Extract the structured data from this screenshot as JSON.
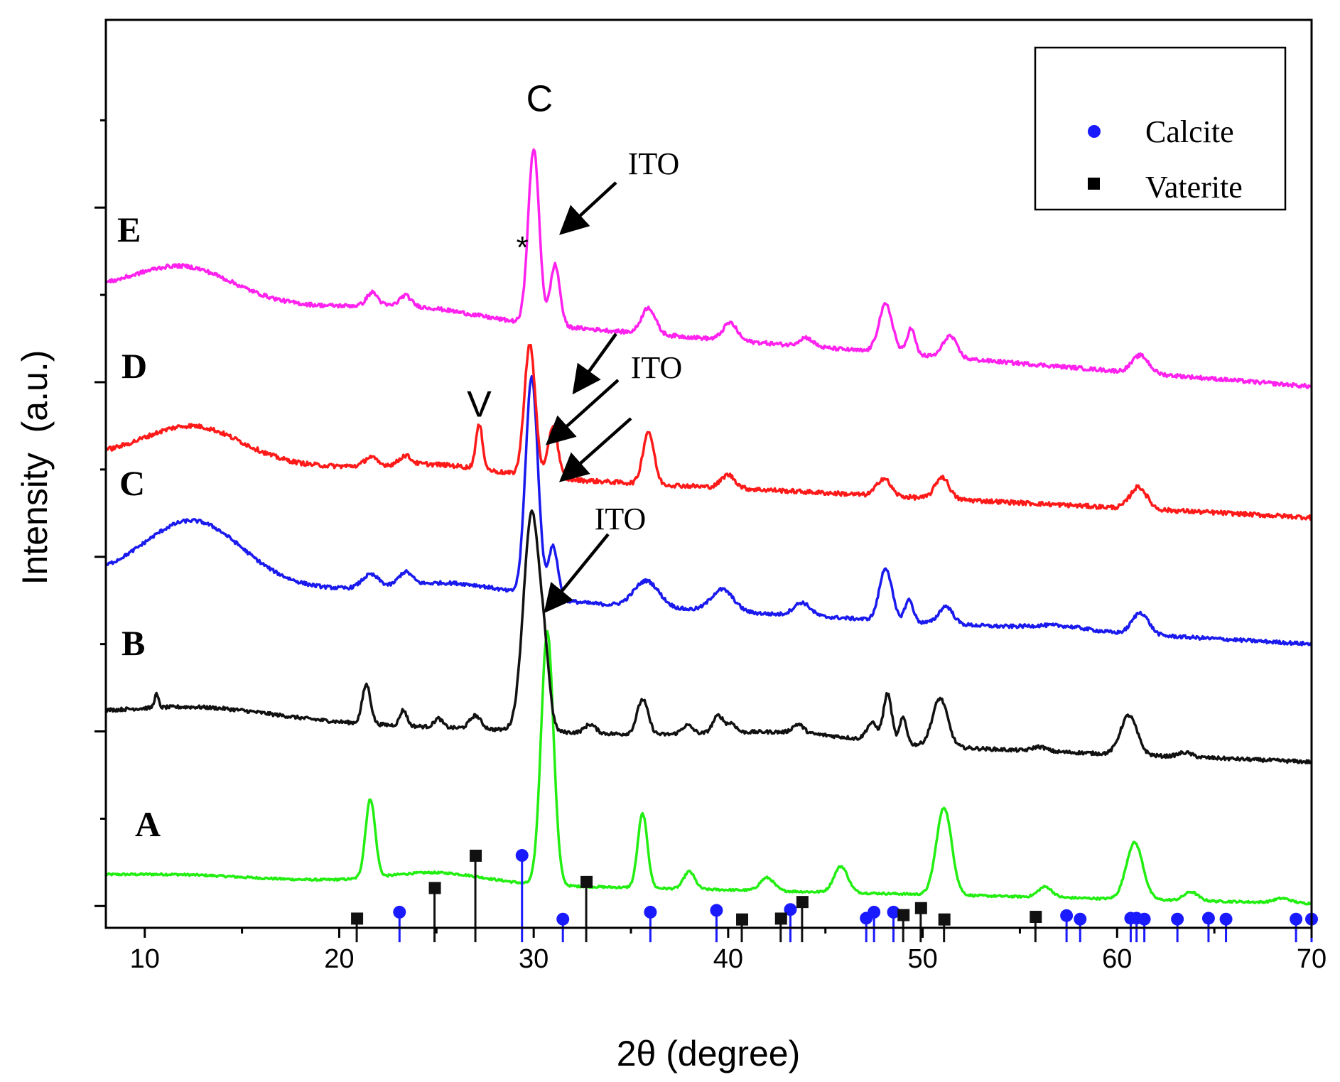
{
  "chart_data": {
    "type": "line",
    "title": "",
    "xlabel": "2θ (degree)",
    "ylabel": "Intensity  (a.u.)",
    "xlim": [
      8,
      70
    ],
    "ylim": [
      0,
      10.4
    ],
    "grid": false,
    "x_ticks": [
      10,
      20,
      30,
      40,
      50,
      60,
      70
    ],
    "y_tick_count": 10,
    "legend": {
      "position": "top-right",
      "items": [
        {
          "label": "Calcite",
          "marker": "circle",
          "color": "#1a1aff"
        },
        {
          "label": "Vaterite",
          "marker": "square",
          "color": "#000000"
        }
      ]
    },
    "series": [
      {
        "name": "A",
        "color": "#22ee11",
        "baseline": 0.6,
        "noise": 0.012,
        "end": 0.28,
        "peaks": [
          [
            21.6,
            0.9,
            0.35
          ],
          [
            30.7,
            2.9,
            0.45
          ],
          [
            35.6,
            0.85,
            0.35
          ],
          [
            38.0,
            0.2,
            0.4
          ],
          [
            42.0,
            0.15,
            0.5
          ],
          [
            45.8,
            0.3,
            0.5
          ],
          [
            51.1,
            1.0,
            0.55
          ],
          [
            56.3,
            0.12,
            0.5
          ],
          [
            60.9,
            0.65,
            0.6
          ],
          [
            63.8,
            0.1,
            0.5
          ],
          [
            68.5,
            0.05,
            0.6
          ]
        ],
        "bumps": [
          [
            25,
            0.12,
            3.5
          ],
          [
            12,
            0.03,
            4
          ]
        ]
      },
      {
        "name": "B",
        "color": "#111111",
        "baseline": 2.45,
        "noise": 0.02,
        "end": 1.9,
        "peaks": [
          [
            10.6,
            0.15,
            0.15
          ],
          [
            21.4,
            0.45,
            0.3
          ],
          [
            23.3,
            0.18,
            0.25
          ],
          [
            25.1,
            0.1,
            0.3
          ],
          [
            27.0,
            0.15,
            0.4
          ],
          [
            29.9,
            2.5,
            0.6
          ],
          [
            30.6,
            0.5,
            0.35
          ],
          [
            32.9,
            0.1,
            0.4
          ],
          [
            35.6,
            0.4,
            0.4
          ],
          [
            37.9,
            0.1,
            0.4
          ],
          [
            39.5,
            0.2,
            0.4
          ],
          [
            40.2,
            0.1,
            0.3
          ],
          [
            43.6,
            0.1,
            0.4
          ],
          [
            47.4,
            0.2,
            0.4
          ],
          [
            48.2,
            0.55,
            0.3
          ],
          [
            49.0,
            0.3,
            0.25
          ],
          [
            50.9,
            0.55,
            0.55
          ],
          [
            56.0,
            0.05,
            0.5
          ],
          [
            60.6,
            0.45,
            0.6
          ],
          [
            63.5,
            0.05,
            0.5
          ]
        ],
        "bumps": [
          [
            13,
            0.12,
            5
          ],
          [
            43,
            0.1,
            5
          ]
        ]
      },
      {
        "name": "C",
        "color": "#1a1aee",
        "baseline": 4.02,
        "noise": 0.02,
        "end": 3.25,
        "peaks": [
          [
            12.5,
            0.7,
            3.5
          ],
          [
            21.6,
            0.15,
            0.6
          ],
          [
            23.4,
            0.15,
            0.5
          ],
          [
            29.9,
            2.5,
            0.45
          ],
          [
            31.0,
            0.6,
            0.35
          ],
          [
            35.8,
            0.3,
            0.9
          ],
          [
            39.7,
            0.25,
            0.8
          ],
          [
            43.8,
            0.15,
            0.6
          ],
          [
            48.1,
            0.6,
            0.45
          ],
          [
            49.3,
            0.25,
            0.3
          ],
          [
            51.2,
            0.2,
            0.5
          ],
          [
            57,
            0.05,
            2
          ],
          [
            61.2,
            0.25,
            0.6
          ]
        ],
        "bumps": [
          [
            26,
            0.15,
            4
          ]
        ]
      },
      {
        "name": "D",
        "color": "#ff1a1a",
        "baseline": 5.4,
        "noise": 0.025,
        "end": 4.7,
        "peaks": [
          [
            12.5,
            0.4,
            3.5
          ],
          [
            21.6,
            0.1,
            0.4
          ],
          [
            23.4,
            0.1,
            0.4
          ],
          [
            27.2,
            0.5,
            0.25
          ],
          [
            29.8,
            1.5,
            0.4
          ],
          [
            31.0,
            0.6,
            0.35
          ],
          [
            35.9,
            0.6,
            0.4
          ],
          [
            40.0,
            0.15,
            0.5
          ],
          [
            48.0,
            0.2,
            0.5
          ],
          [
            51.0,
            0.25,
            0.5
          ],
          [
            61.1,
            0.25,
            0.6
          ]
        ],
        "bumps": [
          [
            25,
            0.1,
            4
          ]
        ]
      },
      {
        "name": "E",
        "color": "#ff22ee",
        "baseline": 7.3,
        "noise": 0.022,
        "end": 6.2,
        "peaks": [
          [
            12.0,
            0.35,
            3.5
          ],
          [
            21.7,
            0.15,
            0.4
          ],
          [
            23.4,
            0.12,
            0.4
          ],
          [
            30.0,
            2.0,
            0.4
          ],
          [
            31.1,
            0.7,
            0.35
          ],
          [
            35.9,
            0.3,
            0.5
          ],
          [
            40.1,
            0.2,
            0.5
          ],
          [
            44.0,
            0.1,
            0.5
          ],
          [
            48.1,
            0.55,
            0.5
          ],
          [
            49.4,
            0.3,
            0.3
          ],
          [
            51.4,
            0.25,
            0.5
          ],
          [
            61.2,
            0.2,
            0.6
          ]
        ],
        "bumps": [
          [
            24,
            0.1,
            4
          ]
        ]
      }
    ],
    "reference_lines": {
      "calcite": {
        "color": "#1a1aff",
        "x": [
          23.1,
          29.4,
          31.5,
          36.0,
          39.4,
          43.2,
          47.1,
          47.5,
          48.5,
          57.4,
          58.1,
          60.7,
          61.0,
          61.4,
          63.1,
          64.7,
          65.6,
          69.2,
          70.0
        ],
        "heights": [
          0.1,
          0.75,
          0.02,
          0.1,
          0.12,
          0.13,
          0.03,
          0.1,
          0.1,
          0.06,
          0.02,
          0.03,
          0.03,
          0.02,
          0.02,
          0.03,
          0.02,
          0.02,
          0.02
        ]
      },
      "vaterite": {
        "color": "#111111",
        "x": [
          20.9,
          24.9,
          27.0,
          32.7,
          40.7,
          42.7,
          43.8,
          49.0,
          49.9,
          51.1,
          55.8
        ],
        "heights": [
          0.03,
          0.38,
          0.75,
          0.45,
          0.02,
          0.03,
          0.22,
          0.07,
          0.15,
          0.02,
          0.05
        ]
      }
    },
    "curve_labels": [
      {
        "text": "A",
        "series": "A"
      },
      {
        "text": "B",
        "series": "B"
      },
      {
        "text": "C",
        "series": "C"
      },
      {
        "text": "D",
        "series": "D"
      },
      {
        "text": "E",
        "series": "E"
      }
    ],
    "annotations": [
      {
        "text": "C",
        "x": 30.3,
        "y": 9.5
      },
      {
        "text": "V",
        "x": 27.2,
        "y": 6.0
      },
      {
        "text": "*",
        "x": 29.6,
        "y": 7.9
      },
      {
        "text": "ITO",
        "x": 33.8,
        "y": 8.4,
        "arrow_to": [
          31.2,
          7.6
        ]
      },
      {
        "text": "ITO",
        "x": 34.0,
        "y": 6.0,
        "arrow_from": [
          34.2,
          6.55
        ],
        "arrow_to": [
          31.1,
          5.8
        ]
      },
      {
        "text": "ITO",
        "x": 34.0,
        "y": 6.0,
        "arrow_from": [
          33.9,
          6.1
        ],
        "arrow_to": [
          30.7,
          5.3
        ]
      },
      {
        "text": "ITO",
        "x": 34.0,
        "y": 6.0,
        "arrow_from": [
          34.6,
          5.45
        ],
        "arrow_to": [
          31.3,
          4.8
        ]
      },
      {
        "text": "ITO",
        "x": 32.0,
        "y": 4.3,
        "arrow_from": [
          32.7,
          4.2
        ],
        "arrow_to": [
          30.5,
          3.3
        ]
      }
    ]
  }
}
